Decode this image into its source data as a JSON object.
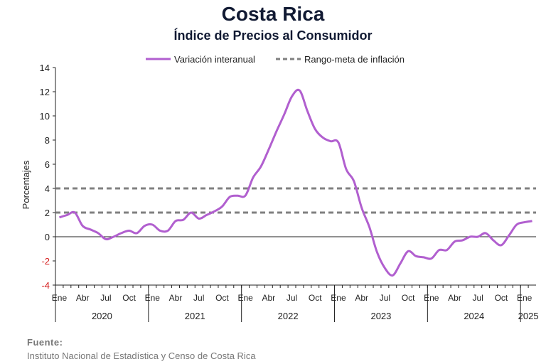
{
  "header": {
    "title": "Costa Rica",
    "subtitle": "Índice de Precios al Consumidor"
  },
  "source": {
    "label": "Fuente:",
    "text": "Instituto Nacional de Estadística y Censo de Costa Rica"
  },
  "colors": {
    "series": "#b15fcf",
    "target_band": "#808080",
    "axis": "#222222",
    "negative_tick": "#d62020",
    "title": "#111a33"
  },
  "chart_data": {
    "type": "line",
    "ylabel": "Porcentajes",
    "ylim": [
      -4,
      14
    ],
    "yticks": [
      -4,
      -2,
      0,
      2,
      4,
      6,
      8,
      10,
      12,
      14
    ],
    "month_ticks": [
      "Ene",
      "Abr",
      "Jul",
      "Oct"
    ],
    "years": [
      "2020",
      "2021",
      "2022",
      "2023",
      "2024",
      "2025"
    ],
    "grid": false,
    "legend_position": "top-center",
    "legend": [
      "Variación interanual",
      "Rango-meta de inflación"
    ],
    "series": [
      {
        "name": "Variación interanual",
        "style": "solid",
        "x": [
          "2020-01",
          "2020-02",
          "2020-03",
          "2020-04",
          "2020-05",
          "2020-06",
          "2020-07",
          "2020-08",
          "2020-09",
          "2020-10",
          "2020-11",
          "2020-12",
          "2021-01",
          "2021-02",
          "2021-03",
          "2021-04",
          "2021-05",
          "2021-06",
          "2021-07",
          "2021-08",
          "2021-09",
          "2021-10",
          "2021-11",
          "2021-12",
          "2022-01",
          "2022-02",
          "2022-03",
          "2022-04",
          "2022-05",
          "2022-06",
          "2022-07",
          "2022-08",
          "2022-09",
          "2022-10",
          "2022-11",
          "2022-12",
          "2023-01",
          "2023-02",
          "2023-03",
          "2023-04",
          "2023-05",
          "2023-06",
          "2023-07",
          "2023-08",
          "2023-09",
          "2023-10",
          "2023-11",
          "2023-12",
          "2024-01",
          "2024-02",
          "2024-03",
          "2024-04",
          "2024-05",
          "2024-06",
          "2024-07",
          "2024-08",
          "2024-09",
          "2024-10",
          "2024-11",
          "2024-12",
          "2025-01",
          "2025-02"
        ],
        "values": [
          1.6,
          1.8,
          2.0,
          0.9,
          0.6,
          0.3,
          -0.2,
          0.0,
          0.3,
          0.5,
          0.3,
          0.9,
          1.0,
          0.5,
          0.5,
          1.3,
          1.4,
          2.0,
          1.5,
          1.8,
          2.1,
          2.5,
          3.3,
          3.4,
          3.4,
          4.9,
          5.8,
          7.2,
          8.7,
          10.1,
          11.6,
          12.1,
          10.4,
          8.9,
          8.2,
          7.9,
          7.8,
          5.6,
          4.6,
          2.4,
          0.8,
          -1.3,
          -2.6,
          -3.2,
          -2.2,
          -1.2,
          -1.6,
          -1.7,
          -1.8,
          -1.1,
          -1.1,
          -0.4,
          -0.3,
          0.0,
          0.0,
          0.3,
          -0.3,
          -0.7,
          0.1,
          1.0,
          1.2,
          1.3
        ]
      },
      {
        "name": "Rango-meta de inflación",
        "style": "dashed",
        "values": [
          2,
          4
        ]
      }
    ]
  }
}
